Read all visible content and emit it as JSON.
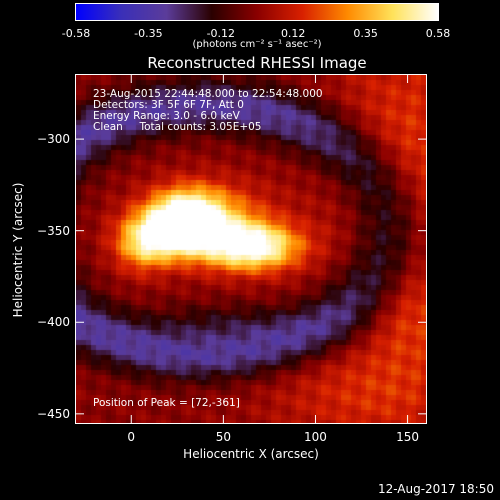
{
  "colors": {
    "colormap": [
      "#0000ff",
      "#3a2fb8",
      "#5b3c9a",
      "#2a0000",
      "#8a0000",
      "#d82000",
      "#ff8a00",
      "#ffe25a",
      "#ffffff"
    ]
  },
  "chart_data": {
    "type": "heatmap",
    "title": "Reconstructed RHESSI Image",
    "xlabel": "Heliocentric X (arcsec)",
    "ylabel": "Heliocentric Y (arcsec)",
    "xlim": [
      -30,
      160
    ],
    "ylim": [
      -455,
      -265
    ],
    "xticks": [
      0,
      50,
      100,
      150
    ],
    "yticks": [
      -300,
      -350,
      -400,
      -450
    ],
    "colorbar": {
      "ticks": [
        "-0.58",
        "-0.35",
        "-0.12",
        "0.12",
        "0.35",
        "0.58"
      ],
      "range": [
        -0.58,
        0.58
      ],
      "units_label": "(photons cm⁻² s⁻¹ asec⁻²)"
    },
    "annotations": {
      "line1": "23-Aug-2015 22:44:48.000 to 22:54:48.000",
      "line2": "Detectors: 3F 5F 6F 7F, Att 0",
      "line3": "Energy Range: 3.0 - 6.0 keV",
      "line4": "Clean     Total counts: 3.05E+05",
      "peak": "Position of Peak = [72,-361]"
    },
    "peak_position": [
      72,
      -361
    ],
    "timestamp": "12-Aug-2017 18:50"
  }
}
